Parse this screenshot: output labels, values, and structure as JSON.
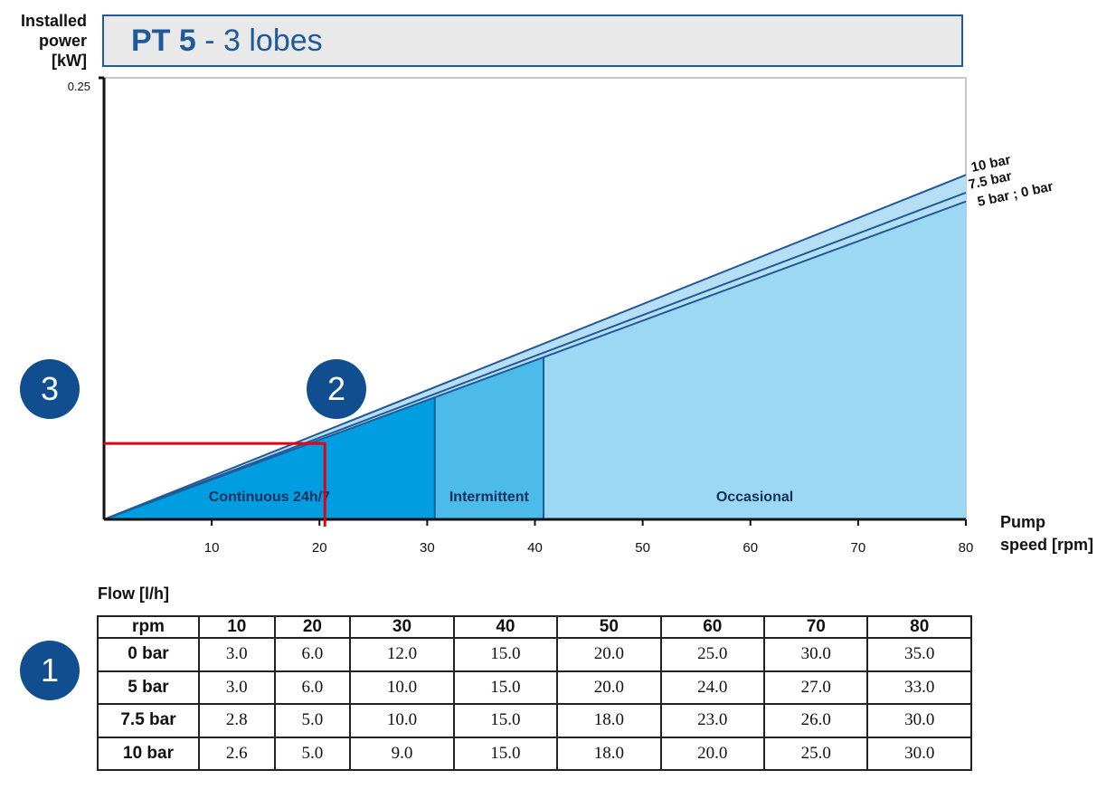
{
  "title_bold": "PT 5",
  "title_rest": " - 3 lobes",
  "y_axis_label": "Installed\npower\n[kW]",
  "y_max_label": "0.25",
  "x_axis_label": "Pump\nspeed [rpm]",
  "flow_label": "Flow [l/h]",
  "badges": {
    "one": "1",
    "two": "2",
    "three": "3"
  },
  "colors": {
    "line": "#1f5a99",
    "continuous": "#009ee0",
    "intermittent": "#4cbbea",
    "occasional": "#9cd8f4",
    "marker": "#e3000f"
  },
  "chart_data": {
    "type": "area",
    "xlim": [
      0,
      80
    ],
    "ylim": [
      0,
      0.25
    ],
    "x_ticks": [
      10,
      20,
      30,
      40,
      50,
      60,
      70,
      80
    ],
    "y_tick_label": "0.25",
    "series": [
      {
        "name": "10 bar",
        "x": [
          0,
          80
        ],
        "y": [
          0,
          0.195
        ]
      },
      {
        "name": "7.5 bar",
        "x": [
          0,
          80
        ],
        "y": [
          0,
          0.185
        ]
      },
      {
        "name": "5 bar ; 0 bar",
        "x": [
          0,
          80
        ],
        "y": [
          0,
          0.18
        ]
      }
    ],
    "zones": [
      {
        "label": "Continuous 24h/7",
        "from": 0,
        "to": 30.7
      },
      {
        "label": "Intermittent",
        "from": 30.7,
        "to": 40.8
      },
      {
        "label": "Occasional",
        "from": 40.8,
        "to": 80
      }
    ],
    "operating_point": {
      "x": 20.5,
      "y": 0.043
    }
  },
  "flow_table": {
    "header": [
      "rpm",
      "10",
      "20",
      "30",
      "40",
      "50",
      "60",
      "70",
      "80"
    ],
    "rows": [
      [
        "0 bar",
        "3.0",
        "6.0",
        "12.0",
        "15.0",
        "20.0",
        "25.0",
        "30.0",
        "35.0"
      ],
      [
        "5 bar",
        "3.0",
        "6.0",
        "10.0",
        "15.0",
        "20.0",
        "24.0",
        "27.0",
        "33.0"
      ],
      [
        "7.5 bar",
        "2.8",
        "5.0",
        "10.0",
        "15.0",
        "18.0",
        "23.0",
        "26.0",
        "30.0"
      ],
      [
        "10 bar",
        "2.6",
        "5.0",
        "9.0",
        "15.0",
        "18.0",
        "20.0",
        "25.0",
        "30.0"
      ]
    ]
  }
}
